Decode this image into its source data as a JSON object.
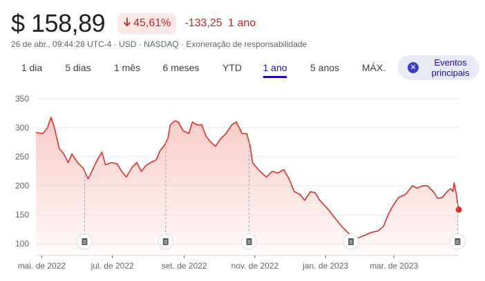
{
  "header": {
    "price": "$ 158,89",
    "change_pct": "45,61%",
    "change_abs": "-133,25",
    "change_period": "1 ano",
    "meta": "26 de abr., 09:44:28 UTC-4 · USD · NASDAQ · Exoneração de responsabilidade"
  },
  "tabs": [
    {
      "label": "1 dia",
      "active": false
    },
    {
      "label": "5 dias",
      "active": false
    },
    {
      "label": "1 mês",
      "active": false
    },
    {
      "label": "6 meses",
      "active": false
    },
    {
      "label": "YTD",
      "active": false
    },
    {
      "label": "1 ano",
      "active": true
    },
    {
      "label": "5 anos",
      "active": false
    },
    {
      "label": "MÁX.",
      "active": false
    }
  ],
  "events_button": {
    "label_line1": "Eventos",
    "label_line2": "principais",
    "icon": "close-circle-icon"
  },
  "colors": {
    "line": "#d93025",
    "fill_top": "#f8c9c4",
    "negative": "#c5221f",
    "accent": "#1a0dab"
  },
  "chart_data": {
    "type": "area",
    "title": "",
    "xlabel": "",
    "ylabel": "",
    "ylim": [
      80,
      350
    ],
    "yticks": [
      100,
      150,
      200,
      250,
      300,
      350
    ],
    "x_start": "2022-04-26",
    "x_end": "2023-04-26",
    "xtick_labels": [
      {
        "label": "mai. de 2022",
        "date": "2022-05-01"
      },
      {
        "label": "jul. de 2022",
        "date": "2022-07-01"
      },
      {
        "label": "set. de 2022",
        "date": "2022-09-01"
      },
      {
        "label": "nov. de 2022",
        "date": "2022-11-01"
      },
      {
        "label": "jan. de 2023",
        "date": "2023-01-01"
      },
      {
        "label": "mar. de 2023",
        "date": "2023-03-01"
      }
    ],
    "grid": true,
    "series": [
      {
        "values": [
          [
            "2022-04-26",
            292
          ],
          [
            "2022-05-02",
            290
          ],
          [
            "2022-05-06",
            300
          ],
          [
            "2022-05-09",
            318
          ],
          [
            "2022-05-12",
            300
          ],
          [
            "2022-05-16",
            265
          ],
          [
            "2022-05-20",
            255
          ],
          [
            "2022-05-24",
            240
          ],
          [
            "2022-05-27",
            255
          ],
          [
            "2022-06-01",
            240
          ],
          [
            "2022-06-06",
            230
          ],
          [
            "2022-06-10",
            212
          ],
          [
            "2022-06-14",
            228
          ],
          [
            "2022-06-18",
            245
          ],
          [
            "2022-06-22",
            258
          ],
          [
            "2022-06-25",
            236
          ],
          [
            "2022-06-30",
            240
          ],
          [
            "2022-07-05",
            238
          ],
          [
            "2022-07-09",
            225
          ],
          [
            "2022-07-13",
            215
          ],
          [
            "2022-07-18",
            232
          ],
          [
            "2022-07-22",
            240
          ],
          [
            "2022-07-26",
            225
          ],
          [
            "2022-07-30",
            235
          ],
          [
            "2022-08-03",
            240
          ],
          [
            "2022-08-08",
            245
          ],
          [
            "2022-08-11",
            260
          ],
          [
            "2022-08-15",
            270
          ],
          [
            "2022-08-18",
            282
          ],
          [
            "2022-08-20",
            305
          ],
          [
            "2022-08-24",
            312
          ],
          [
            "2022-08-27",
            310
          ],
          [
            "2022-08-31",
            295
          ],
          [
            "2022-09-05",
            290
          ],
          [
            "2022-09-08",
            310
          ],
          [
            "2022-09-12",
            305
          ],
          [
            "2022-09-16",
            305
          ],
          [
            "2022-09-20",
            285
          ],
          [
            "2022-09-24",
            275
          ],
          [
            "2022-09-28",
            268
          ],
          [
            "2022-10-02",
            280
          ],
          [
            "2022-10-07",
            290
          ],
          [
            "2022-10-12",
            305
          ],
          [
            "2022-10-16",
            310
          ],
          [
            "2022-10-21",
            290
          ],
          [
            "2022-10-25",
            290
          ],
          [
            "2022-10-28",
            268
          ],
          [
            "2022-10-30",
            240
          ],
          [
            "2022-11-03",
            230
          ],
          [
            "2022-11-07",
            222
          ],
          [
            "2022-11-11",
            215
          ],
          [
            "2022-11-16",
            225
          ],
          [
            "2022-11-21",
            222
          ],
          [
            "2022-11-26",
            228
          ],
          [
            "2022-12-01",
            210
          ],
          [
            "2022-12-05",
            190
          ],
          [
            "2022-12-10",
            185
          ],
          [
            "2022-12-14",
            175
          ],
          [
            "2022-12-19",
            190
          ],
          [
            "2022-12-23",
            188
          ],
          [
            "2022-12-27",
            175
          ],
          [
            "2023-01-03",
            160
          ],
          [
            "2023-01-09",
            145
          ],
          [
            "2023-01-15",
            130
          ],
          [
            "2023-01-21",
            118
          ],
          [
            "2023-01-25",
            105
          ],
          [
            "2023-01-29",
            110
          ],
          [
            "2023-02-04",
            115
          ],
          [
            "2023-02-10",
            120
          ],
          [
            "2023-02-15",
            122
          ],
          [
            "2023-02-20",
            130
          ],
          [
            "2023-02-24",
            150
          ],
          [
            "2023-02-28",
            165
          ],
          [
            "2023-03-05",
            180
          ],
          [
            "2023-03-11",
            185
          ],
          [
            "2023-03-17",
            200
          ],
          [
            "2023-03-21",
            196
          ],
          [
            "2023-03-26",
            200
          ],
          [
            "2023-03-30",
            200
          ],
          [
            "2023-04-04",
            190
          ],
          [
            "2023-04-08",
            178
          ],
          [
            "2023-04-12",
            180
          ],
          [
            "2023-04-16",
            190
          ],
          [
            "2023-04-19",
            195
          ],
          [
            "2023-04-21",
            190
          ],
          [
            "2023-04-22",
            205
          ],
          [
            "2023-04-23",
            195
          ],
          [
            "2023-04-24",
            185
          ],
          [
            "2023-04-25",
            170
          ],
          [
            "2023-04-26",
            158.89
          ]
        ]
      }
    ],
    "event_markers": [
      "2022-06-07",
      "2022-08-16",
      "2022-10-27",
      "2023-01-23",
      "2023-04-25"
    ]
  }
}
